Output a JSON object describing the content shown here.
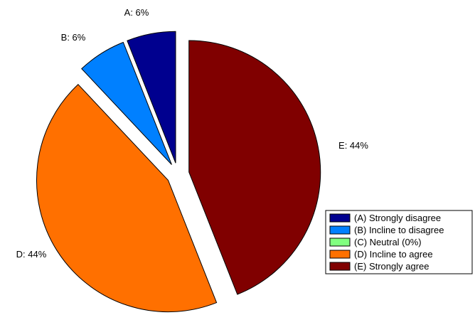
{
  "chart_data": {
    "type": "pie",
    "exploded": true,
    "slices": [
      {
        "key": "A",
        "label": "A: 6%",
        "legend": "(A) Strongly disagree",
        "value": 6,
        "color": "#00008f"
      },
      {
        "key": "B",
        "label": "B: 6%",
        "legend": "(B) Incline to disagree",
        "value": 6,
        "color": "#0080ff"
      },
      {
        "key": "C",
        "label": "",
        "legend": "(C) Neutral (0%)",
        "value": 0,
        "color": "#80ff80"
      },
      {
        "key": "D",
        "label": "D: 44%",
        "legend": "(D) Incline to agree",
        "value": 44,
        "color": "#ff7000"
      },
      {
        "key": "E",
        "label": "E: 44%",
        "legend": "(E) Strongly agree",
        "value": 44,
        "color": "#800000"
      }
    ],
    "legend_position": "bottom-right"
  }
}
